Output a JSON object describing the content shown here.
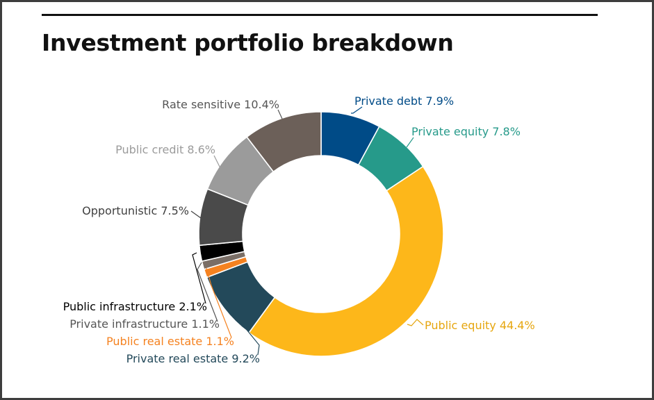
{
  "title": "Investment portfolio breakdown",
  "chart_data": {
    "type": "pie",
    "variant": "donut",
    "unit": "%",
    "slices": [
      {
        "label": "Private debt",
        "value": 7.9,
        "display": "7.9%",
        "color": "#004b87",
        "label_color": "#004b87"
      },
      {
        "label": "Private equity",
        "value": 7.8,
        "display": "7.8%",
        "color": "#269a8a",
        "label_color": "#269a8a"
      },
      {
        "label": "Public equity",
        "value": 44.4,
        "display": "44.4%",
        "color": "#fdb71a",
        "label_color": "#e6a60f"
      },
      {
        "label": "Private real estate",
        "value": 9.2,
        "display": "9.2%",
        "color": "#23495a",
        "label_color": "#23495a"
      },
      {
        "label": "Public real estate",
        "value": 1.1,
        "display": "1.1%",
        "color": "#f58220",
        "label_color": "#f58220"
      },
      {
        "label": "Private infrastructure",
        "value": 1.1,
        "display": "1.1%",
        "color": "#7a6e66",
        "label_color": "#555555"
      },
      {
        "label": "Public infrastructure",
        "value": 2.1,
        "display": "2.1%",
        "color": "#000000",
        "label_color": "#000000"
      },
      {
        "label": "Opportunistic",
        "value": 7.5,
        "display": "7.5%",
        "color": "#4a4a4a",
        "label_color": "#404040"
      },
      {
        "label": "Public credit",
        "value": 8.6,
        "display": "8.6%",
        "color": "#9b9b9b",
        "label_color": "#9b9b9b"
      },
      {
        "label": "Rate sensitive",
        "value": 10.4,
        "display": "10.4%",
        "color": "#6c6059",
        "label_color": "#555555"
      }
    ]
  }
}
